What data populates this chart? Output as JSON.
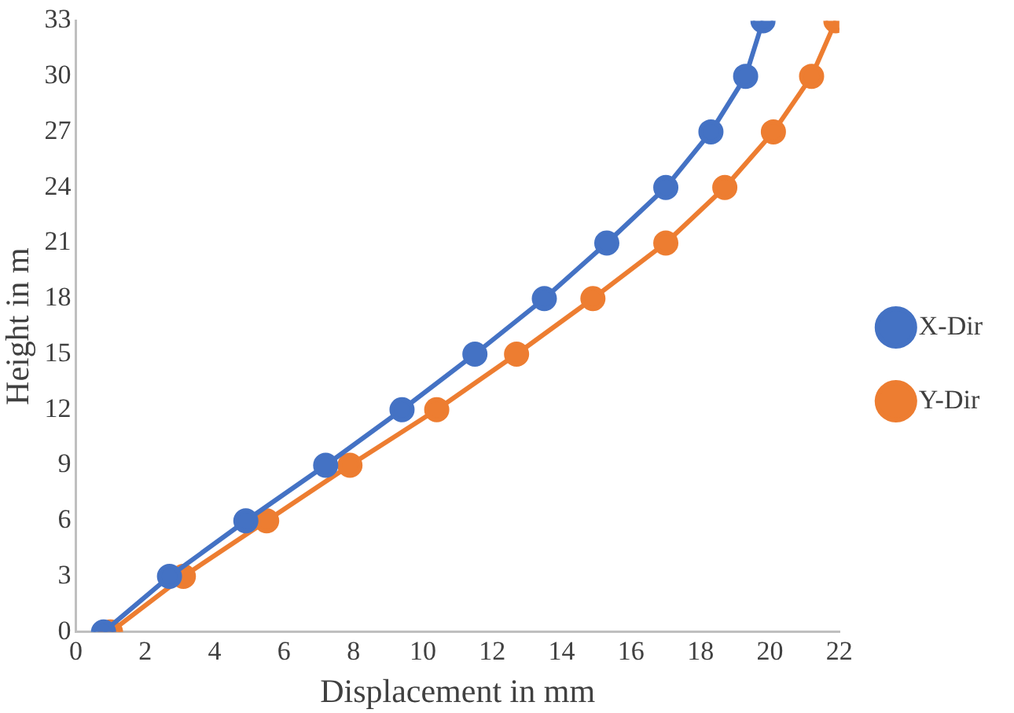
{
  "chart_data": {
    "type": "line",
    "xlabel": "Displacement in mm",
    "ylabel": "Height in m",
    "xlim": [
      0,
      22
    ],
    "xticks": [
      0,
      2,
      4,
      6,
      8,
      10,
      12,
      14,
      16,
      18,
      20,
      22
    ],
    "ylim": [
      0,
      33
    ],
    "yticks": [
      0,
      3,
      6,
      9,
      12,
      15,
      18,
      21,
      24,
      27,
      30,
      33
    ],
    "grid": false,
    "legend": "right",
    "marker": "circle",
    "line_style": "solid",
    "series": [
      {
        "name": "X-Dir",
        "color": "#4472c4",
        "x": [
          0.8,
          2.7,
          4.9,
          7.2,
          9.4,
          11.5,
          13.5,
          15.3,
          17.0,
          18.3,
          19.3,
          19.8
        ],
        "values": [
          0,
          3,
          6,
          9,
          12,
          15,
          18,
          21,
          24,
          27,
          30,
          33
        ]
      },
      {
        "name": "Y-Dir",
        "color": "#ed7d31",
        "x": [
          1.0,
          3.1,
          5.5,
          7.9,
          10.4,
          12.7,
          14.9,
          17.0,
          18.7,
          20.1,
          21.2,
          21.9
        ],
        "values": [
          0,
          3,
          6,
          9,
          12,
          15,
          18,
          21,
          24,
          27,
          30,
          33
        ]
      }
    ]
  }
}
